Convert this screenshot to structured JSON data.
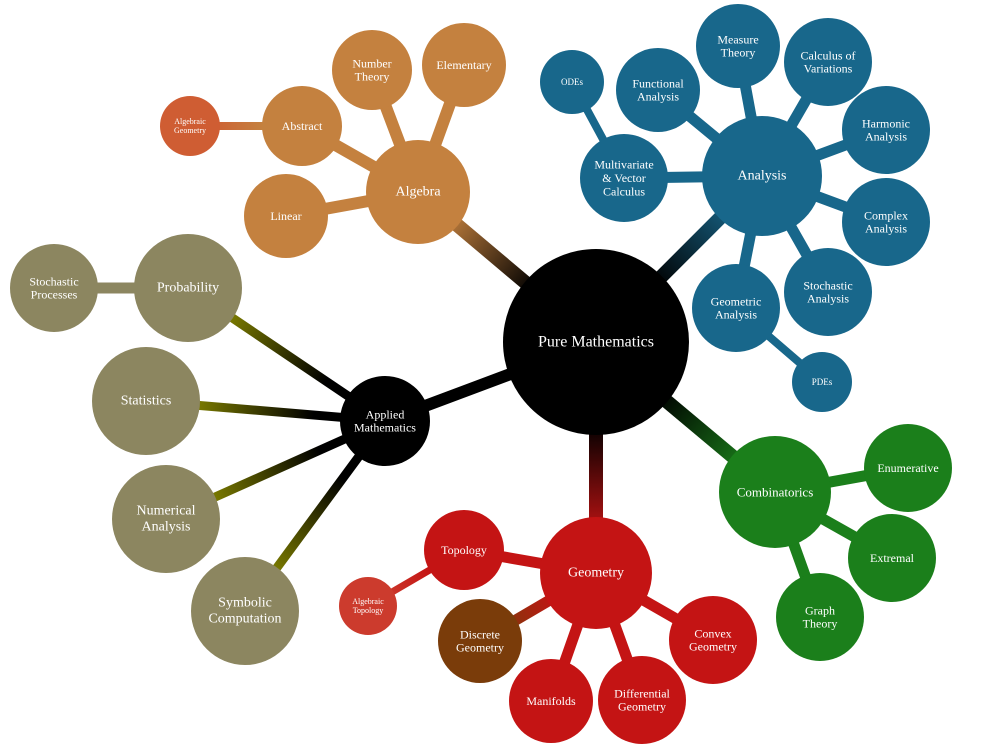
{
  "root": "Pure Mathematics",
  "colors": {
    "root": "#000000",
    "applied": "#000000",
    "algebra": "#c4813f",
    "algebraic_geometry": "#cf5d33",
    "analysis": "#18678b",
    "combinatorics": "#1b7f1b",
    "geometry": "#c41414",
    "algebraic_topology": "#cc3b2d",
    "discrete_geometry": "#7a3c0a",
    "applied_children": "#8c8660",
    "applied_edge": "#8a8a00"
  },
  "nodes": {
    "root": [
      "Pure Mathematics"
    ],
    "algebra": [
      "Algebra"
    ],
    "number_theory": [
      "Number",
      "Theory"
    ],
    "elementary": [
      "Elementary"
    ],
    "abstract": [
      "Abstract"
    ],
    "algebraic_geometry": [
      "Algebraic",
      "Geometry"
    ],
    "linear": [
      "Linear"
    ],
    "analysis": [
      "Analysis"
    ],
    "odes": [
      "ODEs"
    ],
    "functional_analysis": [
      "Functional",
      "Analysis"
    ],
    "measure_theory": [
      "Measure",
      "Theory"
    ],
    "calculus_of_variations": [
      "Calculus of",
      "Variations"
    ],
    "harmonic_analysis": [
      "Harmonic",
      "Analysis"
    ],
    "multivariate": [
      "Multivariate",
      "& Vector",
      "Calculus"
    ],
    "complex_analysis": [
      "Complex",
      "Analysis"
    ],
    "stochastic_analysis": [
      "Stochastic",
      "Analysis"
    ],
    "geometric_analysis": [
      "Geometric",
      "Analysis"
    ],
    "pdes": [
      "PDEs"
    ],
    "combinatorics": [
      "Combinatorics"
    ],
    "enumerative": [
      "Enumerative"
    ],
    "extremal": [
      "Extremal"
    ],
    "graph_theory": [
      "Graph",
      "Theory"
    ],
    "geometry": [
      "Geometry"
    ],
    "topology": [
      "Topology"
    ],
    "algebraic_topology": [
      "Algebraic",
      "Topology"
    ],
    "discrete_geometry": [
      "Discrete",
      "Geometry"
    ],
    "convex_geometry": [
      "Convex",
      "Geometry"
    ],
    "manifolds": [
      "Manifolds"
    ],
    "differential_geometry": [
      "Differential",
      "Geometry"
    ],
    "applied": [
      "Applied",
      "Mathematics"
    ],
    "probability": [
      "Probability"
    ],
    "stochastic_processes": [
      "Stochastic",
      "Processes"
    ],
    "statistics": [
      "Statistics"
    ],
    "numerical_analysis": [
      "Numerical",
      "Analysis"
    ],
    "symbolic_computation": [
      "Symbolic",
      "Computation"
    ]
  }
}
